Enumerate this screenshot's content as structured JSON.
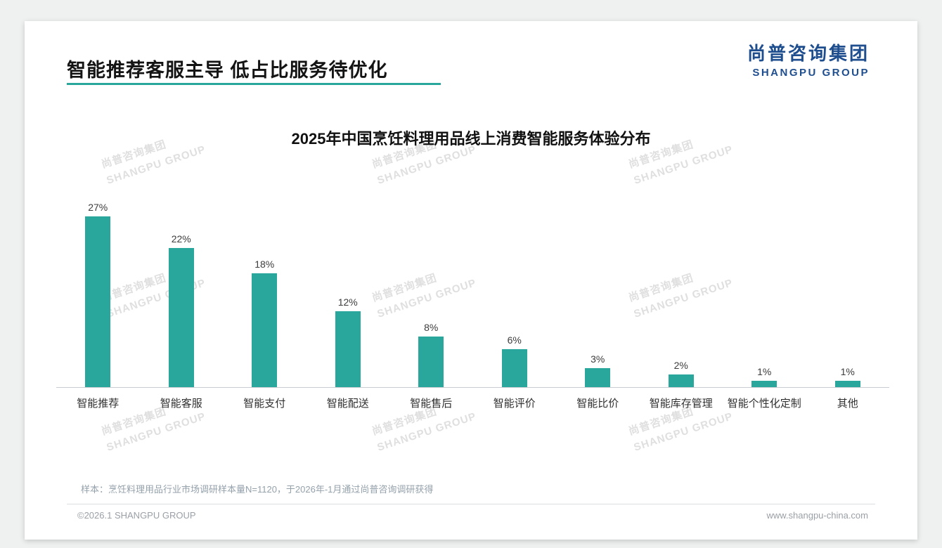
{
  "page": {
    "header": {
      "title": "智能推荐客服主导 低占比服务待优化",
      "logo": {
        "cn": "尚普咨询集团",
        "en": "SHANGPU GROUP"
      }
    },
    "watermark": {
      "cn": "尚普咨询集团",
      "en": "SHANGPU GROUP"
    },
    "footer": {
      "note": "样本：烹饪料理用品行业市场调研样本量N=1120，于2026年-1月通过尚普咨询调研获得",
      "copyright": "©2026.1 SHANGPU GROUP",
      "website": "www.shangpu-china.com"
    },
    "colors": {
      "accent": "#29a79c",
      "logo_blue": "#1f4e8f"
    }
  },
  "chart_data": {
    "type": "bar",
    "title": "2025年中国烹饪料理用品线上消费智能服务体验分布",
    "categories": [
      "智能推荐",
      "智能客服",
      "智能支付",
      "智能配送",
      "智能售后",
      "智能评价",
      "智能比价",
      "智能库存管理",
      "智能个性化定制",
      "其他"
    ],
    "values": [
      27,
      22,
      18,
      12,
      8,
      6,
      3,
      2,
      1,
      1
    ],
    "unit": "%",
    "xlabel": "",
    "ylabel": "",
    "ylim": [
      0,
      30
    ],
    "bar_color": "#29a79c",
    "grid": false,
    "legend": "none"
  }
}
